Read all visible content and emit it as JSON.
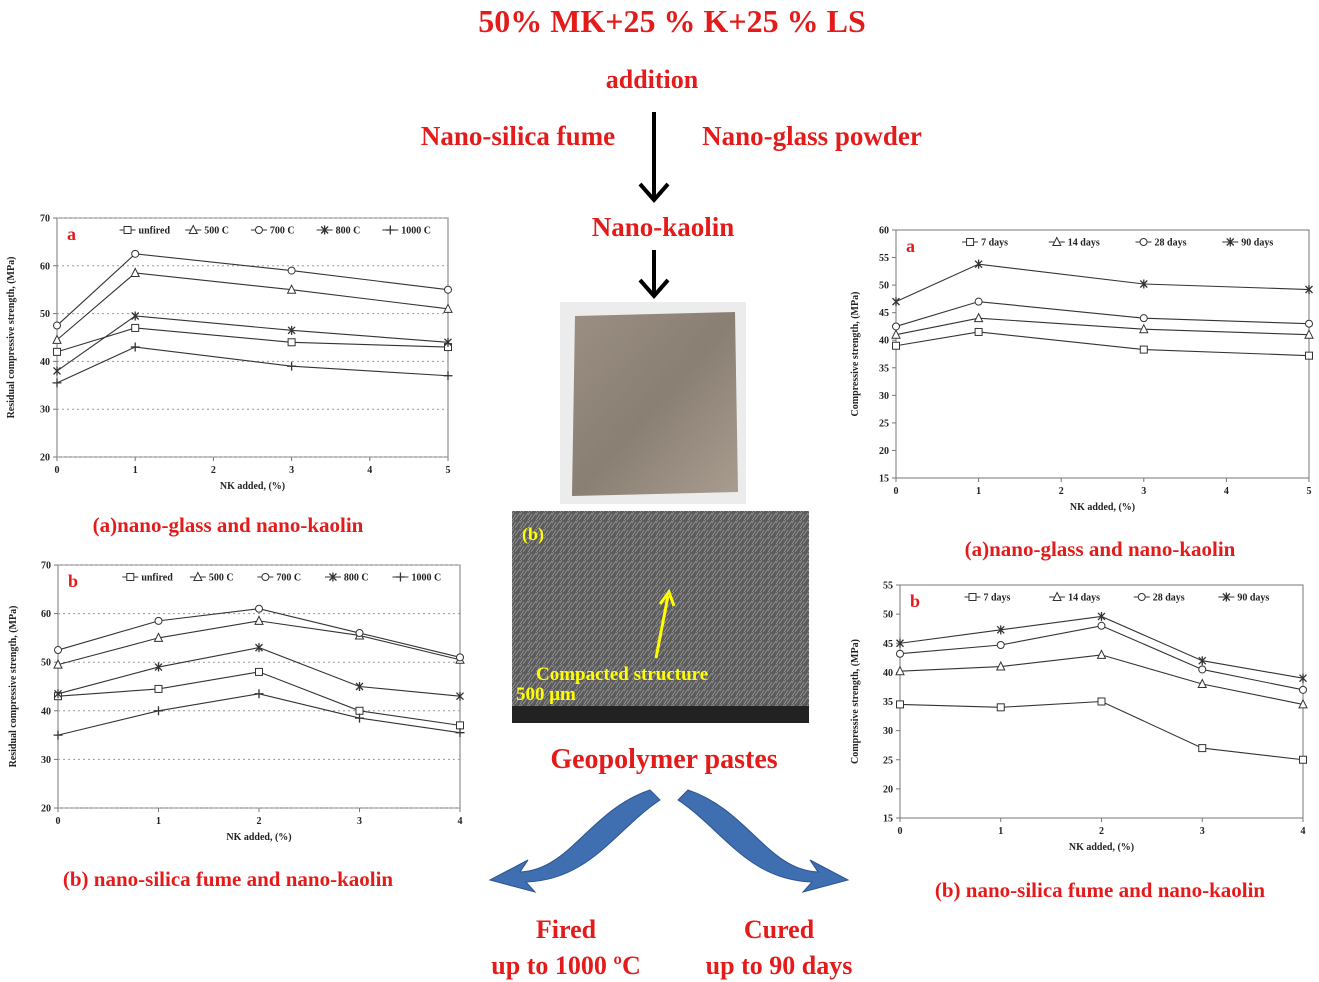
{
  "header": {
    "title": "50% MK+25 % K+25 % LS",
    "addition": "addition",
    "left_additive": "Nano-silica fume",
    "right_additive": "Nano-glass powder",
    "kaolin": "Nano-kaolin"
  },
  "sem": {
    "panel_label": "(b)",
    "annotation": "Compacted structure",
    "scale": "500 μm"
  },
  "center_label": "Geopolymer pastes",
  "fired": {
    "line1": "Fired",
    "line2": "up to 1000 ºC"
  },
  "cured": {
    "line1": "Cured",
    "line2": "up to 90 days"
  },
  "chart_data": [
    {
      "type": "line",
      "panel_label": "a",
      "caption": "(a)nano-glass and nano-kaolin",
      "x_label": "NK added,  (%)",
      "y_label": "Residual compressive strength, (MPa)",
      "x": [
        0,
        1,
        3,
        5
      ],
      "xlim": [
        0,
        5
      ],
      "xticks": [
        0,
        1,
        2,
        3,
        4,
        5
      ],
      "ylim": [
        20,
        70
      ],
      "yticks": [
        20,
        30,
        40,
        50,
        60,
        70
      ],
      "grid": true,
      "series": [
        {
          "name": "unfired",
          "color": "#333333",
          "marker": "square",
          "values": [
            42,
            47,
            44,
            43
          ]
        },
        {
          "name": "500 C",
          "color": "#333333",
          "marker": "triangle",
          "values": [
            44.5,
            58.5,
            55,
            51
          ]
        },
        {
          "name": "700 C",
          "color": "#333333",
          "marker": "circle",
          "values": [
            47.5,
            62.5,
            59,
            55
          ]
        },
        {
          "name": "800 C",
          "color": "#333333",
          "marker": "asterisk",
          "values": [
            38,
            49.5,
            46.5,
            44
          ]
        },
        {
          "name": "1000 C",
          "color": "#333333",
          "marker": "plus",
          "values": [
            35.5,
            43,
            39,
            37
          ]
        }
      ]
    },
    {
      "type": "line",
      "panel_label": "b",
      "caption": "(b) nano-silica fume and nano-kaolin",
      "x_label": "NK added,  (%)",
      "y_label": "Residual compressive strength, (MPa)",
      "x": [
        0,
        1,
        2,
        3,
        4
      ],
      "xlim": [
        0,
        4
      ],
      "xticks": [
        0,
        1,
        2,
        3,
        4
      ],
      "ylim": [
        20,
        70
      ],
      "yticks": [
        20,
        30,
        40,
        50,
        60,
        70
      ],
      "grid": true,
      "series": [
        {
          "name": "unfired",
          "color": "#333333",
          "marker": "square",
          "values": [
            43,
            44.5,
            48,
            40,
            37
          ]
        },
        {
          "name": "500 C",
          "color": "#333333",
          "marker": "triangle",
          "values": [
            49.5,
            55,
            58.5,
            55.5,
            50.5
          ]
        },
        {
          "name": "700 C",
          "color": "#333333",
          "marker": "circle",
          "values": [
            52.5,
            58.5,
            61,
            56,
            51
          ]
        },
        {
          "name": "800 C",
          "color": "#333333",
          "marker": "asterisk",
          "values": [
            43.5,
            49,
            53,
            45,
            43
          ]
        },
        {
          "name": "1000 C",
          "color": "#333333",
          "marker": "plus",
          "values": [
            35,
            40,
            43.5,
            38.5,
            35.5
          ]
        }
      ]
    },
    {
      "type": "line",
      "panel_label": "a",
      "caption": "(a)nano-glass and nano-kaolin",
      "x_label": "NK added,  (%)",
      "y_label": "Compressive strength, (MPa)",
      "x": [
        0,
        1,
        3,
        5
      ],
      "xlim": [
        0,
        5
      ],
      "xticks": [
        0,
        1,
        2,
        3,
        4,
        5
      ],
      "ylim": [
        15,
        60
      ],
      "yticks": [
        15,
        20,
        25,
        30,
        35,
        40,
        45,
        50,
        55,
        60
      ],
      "grid": false,
      "series": [
        {
          "name": "7 days",
          "color": "#333333",
          "marker": "square",
          "values": [
            39,
            41.5,
            38.3,
            37.2
          ]
        },
        {
          "name": "14 days",
          "color": "#333333",
          "marker": "triangle",
          "values": [
            41,
            44,
            42,
            41
          ]
        },
        {
          "name": "28 days",
          "color": "#333333",
          "marker": "circle",
          "values": [
            42.5,
            47,
            44,
            43
          ]
        },
        {
          "name": "90 days",
          "color": "#333333",
          "marker": "asterisk",
          "values": [
            47,
            53.8,
            50.2,
            49.2
          ]
        }
      ]
    },
    {
      "type": "line",
      "panel_label": "b",
      "caption": "(b) nano-silica fume and nano-kaolin",
      "x_label": "NK added,  (%)",
      "y_label": "Compressive strength, (MPa)",
      "x": [
        0,
        1,
        2,
        3,
        4
      ],
      "xlim": [
        0,
        4
      ],
      "xticks": [
        0,
        1,
        2,
        3,
        4
      ],
      "ylim": [
        15,
        55
      ],
      "yticks": [
        15,
        20,
        25,
        30,
        35,
        40,
        45,
        50,
        55
      ],
      "grid": false,
      "series": [
        {
          "name": "7 days",
          "color": "#333333",
          "marker": "square",
          "values": [
            34.5,
            34,
            35,
            27,
            25
          ]
        },
        {
          "name": "14 days",
          "color": "#333333",
          "marker": "triangle",
          "values": [
            40.2,
            41,
            43,
            38,
            34.5
          ]
        },
        {
          "name": "28 days",
          "color": "#333333",
          "marker": "circle",
          "values": [
            43.2,
            44.7,
            48,
            40.5,
            37
          ]
        },
        {
          "name": "90 days",
          "color": "#333333",
          "marker": "asterisk",
          "values": [
            45,
            47.3,
            49.6,
            42,
            39
          ]
        }
      ]
    }
  ]
}
